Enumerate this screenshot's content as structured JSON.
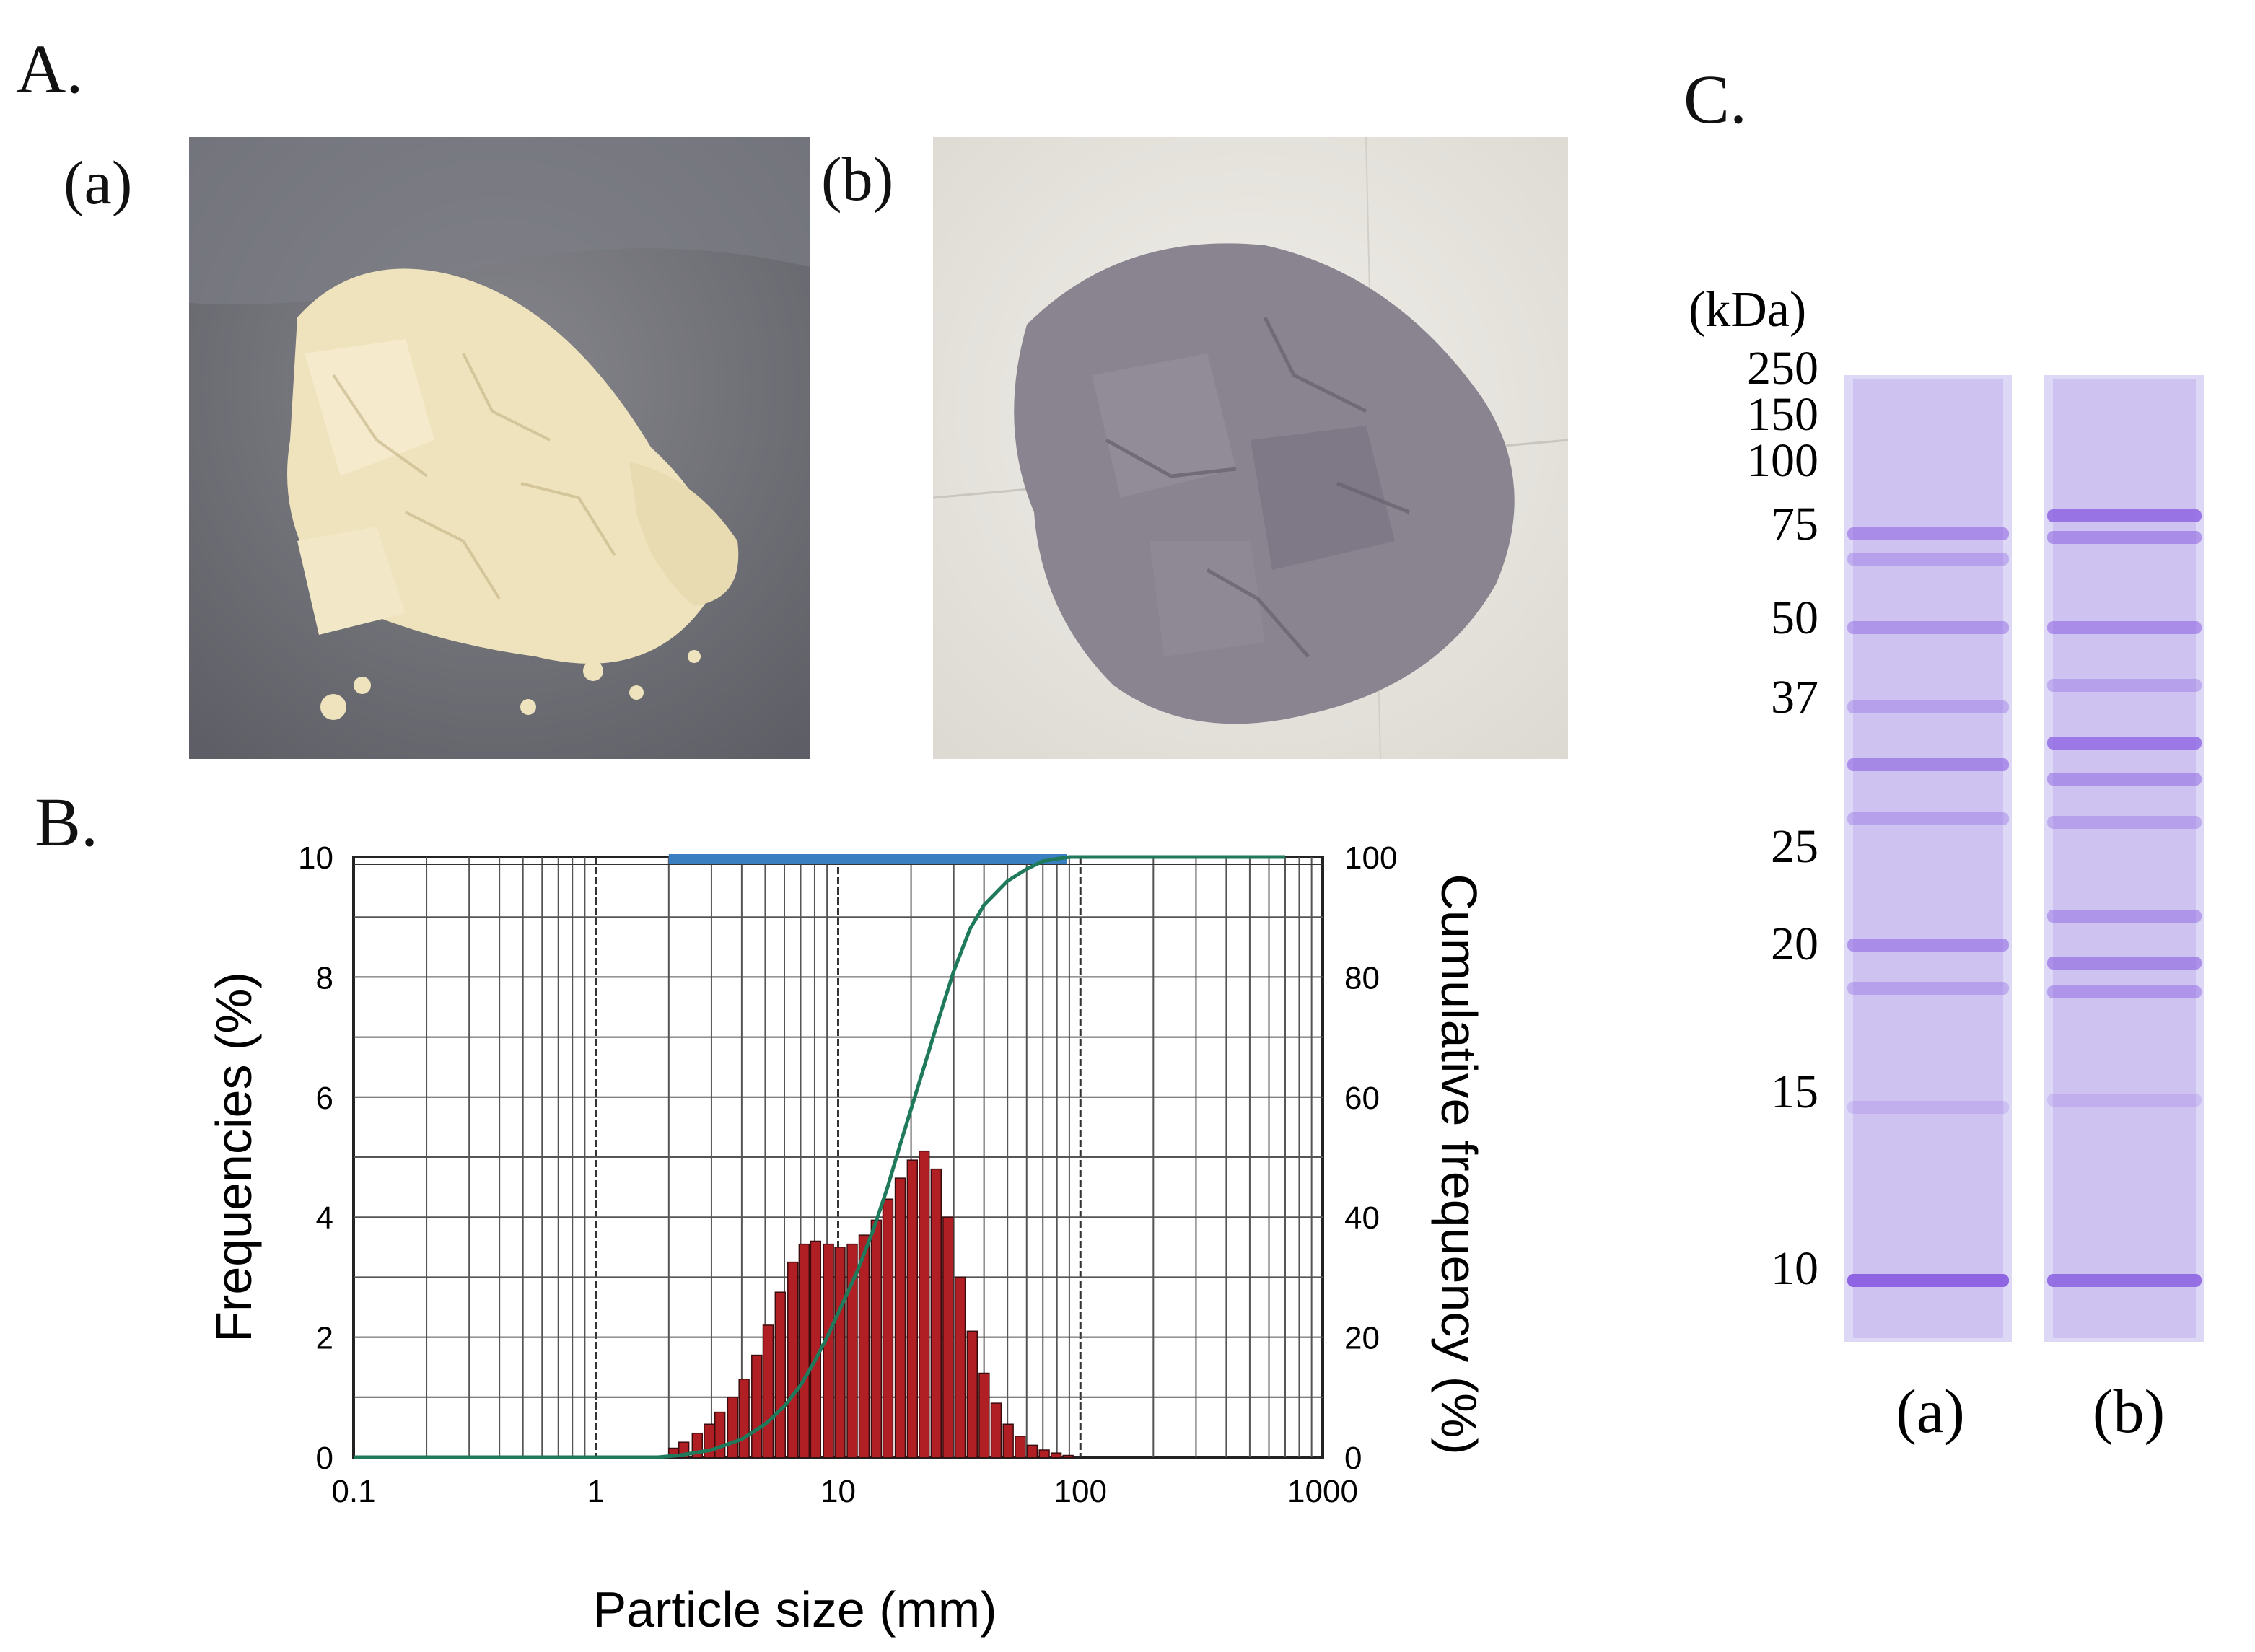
{
  "panels": {
    "A": {
      "label": "A.",
      "photo_a_label": "(a)",
      "photo_b_label": "(b)",
      "photo_a_color": "#efe3bd",
      "photo_b_color": "#8a8490"
    },
    "B": {
      "label": "B."
    },
    "C": {
      "label": "C."
    }
  },
  "chart_data": {
    "type": "bar",
    "secondary_type": "line",
    "xlabel": "Particle size (mm)",
    "ylabel": "Frequencies (%)",
    "y2label": "Cumulative frequency  (%)",
    "xscale": "log",
    "xlim": [
      0.1,
      1000
    ],
    "ylim": [
      0,
      10
    ],
    "y2lim": [
      0,
      100
    ],
    "xticks": [
      "0.1",
      "1",
      "10",
      "100",
      "1000"
    ],
    "yticks": [
      "0",
      "2",
      "4",
      "6",
      "8",
      "10"
    ],
    "y2ticks": [
      "0",
      "20",
      "40",
      "60",
      "80",
      "100"
    ],
    "grid": true,
    "bar_color": "#b01f24",
    "line_color": "#1f7a5c",
    "range_bar": {
      "from": 2.0,
      "to": 88,
      "color": "#3a7fc0"
    },
    "series": [
      {
        "kind": "histogram",
        "x": [
          2.0,
          2.2,
          2.5,
          2.8,
          3.1,
          3.5,
          3.9,
          4.4,
          4.9,
          5.5,
          6.2,
          6.9,
          7.7,
          8.7,
          9.7,
          10.9,
          12.2,
          13.7,
          15.3,
          17.2,
          19.3,
          21.6,
          24.2,
          27.1,
          30.4,
          34.1,
          38.2,
          42.8,
          48.0,
          53.8,
          60.3,
          67.6,
          75.7,
          84.8
        ],
        "values": [
          0.15,
          0.25,
          0.4,
          0.55,
          0.75,
          1.0,
          1.3,
          1.7,
          2.2,
          2.75,
          3.25,
          3.55,
          3.6,
          3.55,
          3.5,
          3.55,
          3.7,
          3.95,
          4.3,
          4.65,
          4.95,
          5.1,
          4.8,
          4.0,
          3.0,
          2.1,
          1.4,
          0.9,
          0.55,
          0.35,
          0.2,
          0.12,
          0.07,
          0.03
        ]
      },
      {
        "kind": "cumulative",
        "x": [
          0.1,
          1,
          1.8,
          2.2,
          3,
          4,
          5,
          6,
          7,
          8,
          9,
          10,
          12,
          14,
          16,
          18,
          20,
          23,
          26,
          30,
          35,
          40,
          50,
          60,
          70,
          80,
          90,
          200,
          700
        ],
        "values": [
          0,
          0,
          0,
          0.3,
          1.2,
          3,
          5.5,
          8.5,
          12,
          16,
          20,
          24,
          31,
          38,
          45,
          52,
          58,
          66,
          73,
          81,
          88,
          92,
          96,
          98,
          99.3,
          99.7,
          100,
          100,
          100
        ]
      }
    ]
  },
  "gel": {
    "unit_label": "(kDa)",
    "markers": [
      "250",
      "150",
      "100",
      "75",
      "50",
      "37",
      "25",
      "20",
      "15",
      "10"
    ],
    "lane_a_label": "(a)",
    "lane_b_label": "(b)",
    "stain_color": "#8a5fe0"
  }
}
